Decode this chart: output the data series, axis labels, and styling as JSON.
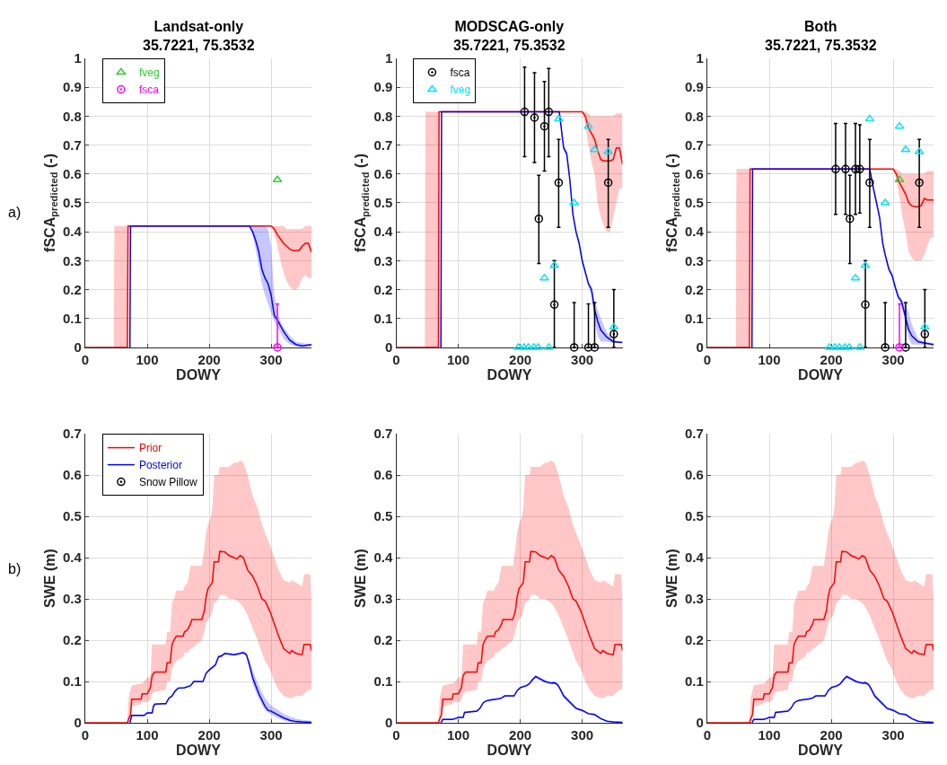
{
  "chart_data": [
    {
      "type": "line",
      "title": "Landsat-only",
      "subtitle": "35.7221, 75.3532",
      "xlabel": "DOWY",
      "ylabel": "fSCA$_{predicted}$ (-)",
      "annotations": [
        "a)"
      ],
      "xlim": [
        0,
        365
      ],
      "xticks": [
        0,
        100,
        200,
        300
      ],
      "ylim": [
        0,
        1
      ],
      "yticks": [
        0,
        0.1,
        0.2,
        0.3,
        0.4,
        0.5,
        0.6,
        0.7,
        0.8,
        0.9,
        1
      ],
      "grid": true,
      "legend": "top left",
      "series": [
        {
          "color": "#ff0000",
          "x": [
            0,
            46,
            47,
            68,
            69,
            300,
            305,
            310,
            315,
            320,
            325,
            330,
            335,
            340,
            345,
            350,
            355,
            360,
            365
          ],
          "values": [
            0,
            0,
            0,
            0,
            0.42,
            0.42,
            0.41,
            0.39,
            0.375,
            0.36,
            0.35,
            0.34,
            0.335,
            0.335,
            0.335,
            0.35,
            0.36,
            0.36,
            0.33
          ],
          "upper": [
            0,
            0,
            0.42,
            0.42,
            0.42,
            0.42,
            0.42,
            0.42,
            0.42,
            0.42,
            0.41,
            0.41,
            0.41,
            0.41,
            0.41,
            0.41,
            0.42,
            0.42,
            0.42
          ],
          "lower": [
            0,
            0,
            0,
            0,
            0.42,
            0.42,
            0.39,
            0.35,
            0.3,
            0.26,
            0.23,
            0.21,
            0.2,
            0.2,
            0.21,
            0.24,
            0.25,
            0.24,
            0.24
          ]
        },
        {
          "color": "#0000ff",
          "x": [
            72,
            73,
            265,
            270,
            275,
            280,
            285,
            290,
            295,
            300,
            305,
            310,
            315,
            320,
            330,
            340,
            350,
            365
          ],
          "values": [
            0,
            0.42,
            0.42,
            0.4,
            0.37,
            0.33,
            0.27,
            0.24,
            0.22,
            0.18,
            0.11,
            0.095,
            0.075,
            0.055,
            0.025,
            0.01,
            0.005,
            0.01
          ],
          "upper": [
            null,
            null,
            0.42,
            0.42,
            0.42,
            0.42,
            0.42,
            0.42,
            0.41,
            0.35,
            0.18,
            0.12,
            0.09,
            0.07,
            0.04,
            0.02,
            0.015,
            0.01
          ],
          "lower": [
            null,
            null,
            0.42,
            0.39,
            0.34,
            0.28,
            0.22,
            0.18,
            0.15,
            0.12,
            0.09,
            0.07,
            0.05,
            0.03,
            0.01,
            0.003,
            0,
            0.003
          ]
        },
        {
          "type": "scatter",
          "name": "fsca",
          "color": "#ff00ff",
          "marker": "circle",
          "x": [
            310
          ],
          "values": [
            0
          ],
          "errors": [
            [
              0,
              0.15
            ]
          ]
        },
        {
          "type": "scatter",
          "name": "fveg",
          "color": "#33cc33",
          "marker": "triangle",
          "x": [
            310
          ],
          "values": [
            0.58
          ]
        }
      ]
    },
    {
      "type": "line",
      "title": "MODSCAG-only",
      "subtitle": "35.7221, 75.3532",
      "xlabel": "DOWY",
      "ylabel": "fSCA$_{predicted}$ (-)",
      "xlim": [
        0,
        365
      ],
      "xticks": [
        0,
        100,
        200,
        300
      ],
      "ylim": [
        0,
        1
      ],
      "yticks": [
        0,
        0.1,
        0.2,
        0.3,
        0.4,
        0.5,
        0.6,
        0.7,
        0.8,
        0.9,
        1
      ],
      "grid": true,
      "legend": "top left",
      "series": [
        {
          "color": "#ff0000",
          "x": [
            0,
            46,
            47,
            68,
            69,
            300,
            305,
            310,
            315,
            320,
            325,
            330,
            335,
            340,
            345,
            350,
            355,
            360,
            365
          ],
          "values": [
            0,
            0,
            0,
            0,
            0.815,
            0.815,
            0.8,
            0.76,
            0.74,
            0.72,
            0.68,
            0.65,
            0.645,
            0.645,
            0.645,
            0.65,
            0.69,
            0.69,
            0.635
          ],
          "upper": [
            0,
            0,
            0.815,
            0.815,
            0.815,
            0.815,
            0.815,
            0.81,
            0.8,
            0.8,
            0.8,
            0.8,
            0.8,
            0.8,
            0.8,
            0.8,
            0.81,
            0.81,
            0.81
          ],
          "lower": [
            0,
            0,
            0,
            0,
            0.815,
            0.815,
            0.77,
            0.7,
            0.64,
            0.6,
            0.5,
            0.45,
            0.42,
            0.4,
            0.4,
            0.45,
            0.5,
            0.55,
            0.55
          ]
        },
        {
          "color": "#0000ff",
          "x": [
            72,
            73,
            263,
            265,
            270,
            275,
            280,
            285,
            290,
            295,
            300,
            305,
            310,
            315,
            320,
            325,
            330,
            340,
            350,
            365
          ],
          "values": [
            0,
            0.815,
            0.815,
            0.78,
            0.69,
            0.67,
            0.58,
            0.46,
            0.4,
            0.36,
            0.3,
            0.26,
            0.22,
            0.2,
            0.13,
            0.09,
            0.06,
            0.035,
            0.02,
            0.017
          ],
          "upper": [
            null,
            null,
            0.815,
            0.79,
            0.7,
            0.68,
            0.59,
            0.47,
            0.41,
            0.37,
            0.31,
            0.27,
            0.23,
            0.21,
            0.16,
            0.13,
            0.1,
            0.05,
            0.025,
            0.02
          ],
          "lower": [
            null,
            null,
            0.815,
            0.77,
            0.68,
            0.66,
            0.57,
            0.45,
            0.39,
            0.35,
            0.29,
            0.25,
            0.21,
            0.18,
            0.09,
            0.04,
            0.02,
            0.02,
            0.015,
            0.015
          ]
        },
        {
          "type": "scatter",
          "name": "fsca",
          "color": "#000000",
          "marker": "circle",
          "x": [
            207,
            223,
            230,
            239,
            246,
            255,
            262,
            287,
            310,
            320,
            342,
            351
          ],
          "values": [
            0.815,
            0.795,
            0.445,
            0.765,
            0.815,
            0.148,
            0.57,
            0,
            0,
            0,
            0.57,
            0.046
          ],
          "errors": [
            [
              0.66,
              0.97
            ],
            [
              0.64,
              0.95
            ],
            [
              0.29,
              0.595
            ],
            [
              0.61,
              0.92
            ],
            [
              0.66,
              0.965
            ],
            [
              0,
              0.3
            ],
            [
              0.415,
              0.72
            ],
            [
              0,
              0.155
            ],
            [
              0,
              0.15
            ],
            [
              0,
              0.155
            ],
            [
              0.415,
              0.72
            ],
            [
              0,
              0.2
            ]
          ]
        },
        {
          "type": "scatter",
          "name": "fveg",
          "color": "#00e5ff",
          "marker": "triangle",
          "x": [
            197,
            206,
            213,
            222,
            229,
            246,
            262,
            239,
            255,
            287,
            310,
            320,
            342,
            351
          ],
          "values": [
            0,
            0,
            0,
            0,
            0,
            0,
            0.79,
            0.24,
            0.283,
            0.5,
            0.765,
            0.684,
            0.677,
            0.07
          ]
        }
      ]
    },
    {
      "type": "line",
      "title": "Both",
      "subtitle": "35.7221, 75.3532",
      "xlabel": "DOWY",
      "ylabel": "fSCA$_{predicted}$ (-)",
      "xlim": [
        0,
        365
      ],
      "xticks": [
        0,
        100,
        200,
        300
      ],
      "ylim": [
        0,
        1
      ],
      "yticks": [
        0,
        0.1,
        0.2,
        0.3,
        0.4,
        0.5,
        0.6,
        0.7,
        0.8,
        0.9,
        1
      ],
      "grid": true,
      "series": [
        {
          "color": "#ff0000",
          "x": [
            0,
            46,
            47,
            68,
            69,
            300,
            305,
            310,
            315,
            320,
            325,
            330,
            335,
            340,
            345,
            350,
            355,
            360,
            365
          ],
          "values": [
            0,
            0,
            0,
            0,
            0.617,
            0.617,
            0.6,
            0.57,
            0.55,
            0.53,
            0.5,
            0.49,
            0.487,
            0.487,
            0.49,
            0.515,
            0.51,
            0.51,
            0.51
          ],
          "upper": [
            0,
            0,
            0.617,
            0.617,
            0.617,
            0.617,
            0.617,
            0.61,
            0.6,
            0.6,
            0.6,
            0.6,
            0.6,
            0.6,
            0.6,
            0.6,
            0.61,
            0.61,
            0.61
          ],
          "lower": [
            0,
            0,
            0,
            0,
            0.617,
            0.617,
            0.58,
            0.52,
            0.45,
            0.4,
            0.33,
            0.31,
            0.3,
            0.3,
            0.3,
            0.32,
            0.35,
            0.38,
            0.38
          ]
        },
        {
          "color": "#0000ff",
          "x": [
            72,
            73,
            262,
            268,
            272,
            278,
            283,
            287,
            293,
            298,
            303,
            308,
            313,
            318,
            325,
            330,
            340,
            350,
            365
          ],
          "values": [
            0,
            0.617,
            0.617,
            0.55,
            0.51,
            0.45,
            0.36,
            0.32,
            0.27,
            0.25,
            0.21,
            0.175,
            0.16,
            0.12,
            0.06,
            0.04,
            0.02,
            0.015,
            0.01
          ],
          "upper": [
            null,
            null,
            0.617,
            0.56,
            0.52,
            0.46,
            0.37,
            0.33,
            0.28,
            0.26,
            0.22,
            0.185,
            0.17,
            0.15,
            0.12,
            0.08,
            0.03,
            0.02,
            0.015
          ],
          "lower": [
            null,
            null,
            0.617,
            0.54,
            0.5,
            0.44,
            0.35,
            0.31,
            0.26,
            0.24,
            0.2,
            0.165,
            0.15,
            0.1,
            0.03,
            0.01,
            0.01,
            0.01,
            0.005
          ]
        },
        {
          "type": "scatter",
          "color": "#000000",
          "marker": "circle",
          "x": [
            207,
            223,
            230,
            239,
            246,
            255,
            262,
            287,
            320,
            342,
            351
          ],
          "values": [
            0.617,
            0.617,
            0.445,
            0.617,
            0.617,
            0.148,
            0.57,
            0,
            0,
            0.57,
            0.046
          ],
          "errors": [
            [
              0.46,
              0.775
            ],
            [
              0.46,
              0.775
            ],
            [
              0.29,
              0.595
            ],
            [
              0.46,
              0.775
            ],
            [
              0.465,
              0.77
            ],
            [
              0,
              0.3
            ],
            [
              0.415,
              0.72
            ],
            [
              0,
              0.155
            ],
            [
              0,
              0.155
            ],
            [
              0.415,
              0.72
            ],
            [
              0,
              0.2
            ]
          ]
        },
        {
          "type": "scatter",
          "color": "#ff00ff",
          "marker": "circle",
          "x": [
            310
          ],
          "values": [
            0
          ],
          "errors": [
            [
              0,
              0.15
            ]
          ]
        },
        {
          "type": "scatter",
          "color": "#00e5ff",
          "marker": "triangle",
          "x": [
            197,
            206,
            213,
            222,
            229,
            246,
            262,
            239,
            255,
            287,
            310,
            320,
            342,
            351
          ],
          "values": [
            0,
            0,
            0,
            0,
            0,
            0,
            0.79,
            0.24,
            0.283,
            0.5,
            0.765,
            0.684,
            0.677,
            0.07
          ]
        },
        {
          "type": "scatter",
          "color": "#33cc33",
          "marker": "triangle",
          "x": [
            310
          ],
          "values": [
            0.58
          ]
        }
      ]
    },
    {
      "type": "line",
      "xlabel": "DOWY",
      "ylabel": "SWE (m)",
      "annotations": [
        "b)"
      ],
      "xlim": [
        0,
        365
      ],
      "xticks": [
        0,
        100,
        200,
        300
      ],
      "ylim": [
        0,
        0.7
      ],
      "yticks": [
        0,
        0.1,
        0.2,
        0.3,
        0.4,
        0.5,
        0.6,
        0.7
      ],
      "grid": true,
      "legend": "top left",
      "series": [
        {
          "name": "Prior",
          "color": "#ff0000",
          "x": [
            0,
            68,
            70,
            73,
            75,
            90,
            92,
            100,
            105,
            108,
            112,
            130,
            132,
            137,
            140,
            143,
            147,
            158,
            160,
            165,
            170,
            172,
            188,
            192,
            195,
            198,
            203,
            205,
            208,
            215,
            217,
            225,
            232,
            240,
            245,
            250,
            255,
            262,
            270,
            278,
            285,
            290,
            298,
            305,
            312,
            320,
            330,
            333,
            340,
            350,
            353,
            360,
            363,
            365
          ],
          "values": [
            0,
            0,
            0.01,
            0.02,
            0.057,
            0.057,
            0.07,
            0.07,
            0.085,
            0.115,
            0.123,
            0.123,
            0.145,
            0.145,
            0.19,
            0.2,
            0.21,
            0.21,
            0.22,
            0.225,
            0.24,
            0.25,
            0.25,
            0.27,
            0.305,
            0.325,
            0.335,
            0.34,
            0.39,
            0.39,
            0.415,
            0.414,
            0.405,
            0.4,
            0.397,
            0.405,
            0.4,
            0.37,
            0.355,
            0.33,
            0.3,
            0.295,
            0.27,
            0.24,
            0.21,
            0.18,
            0.168,
            0.175,
            0.168,
            0.165,
            0.19,
            0.19,
            0.19,
            0.175
          ],
          "upper": [
            0,
            0,
            0.06,
            0.08,
            0.09,
            0.095,
            0.095,
            0.11,
            0.11,
            0.19,
            0.19,
            0.19,
            0.22,
            0.22,
            0.29,
            0.3,
            0.32,
            0.32,
            0.33,
            0.34,
            0.38,
            0.38,
            0.38,
            0.42,
            0.46,
            0.48,
            0.5,
            0.52,
            0.6,
            0.6,
            0.62,
            0.62,
            0.62,
            0.63,
            0.63,
            0.635,
            0.63,
            0.6,
            0.55,
            0.52,
            0.48,
            0.46,
            0.43,
            0.4,
            0.37,
            0.345,
            0.34,
            0.345,
            0.34,
            0.33,
            0.36,
            0.36,
            0.36,
            0.3
          ],
          "lower": [
            0,
            0,
            0,
            0.01,
            0.04,
            0.045,
            0.05,
            0.05,
            0.055,
            0.07,
            0.075,
            0.08,
            0.1,
            0.1,
            0.13,
            0.14,
            0.15,
            0.16,
            0.17,
            0.17,
            0.18,
            0.18,
            0.2,
            0.22,
            0.24,
            0.25,
            0.26,
            0.27,
            0.29,
            0.3,
            0.31,
            0.31,
            0.3,
            0.3,
            0.295,
            0.29,
            0.28,
            0.26,
            0.23,
            0.2,
            0.17,
            0.15,
            0.13,
            0.1,
            0.08,
            0.065,
            0.06,
            0.06,
            0.065,
            0.065,
            0.07,
            0.08,
            0.08,
            0.08
          ]
        },
        {
          "name": "Posterior",
          "color": "#0000ff",
          "x": [
            72,
            75,
            95,
            100,
            108,
            110,
            112,
            125,
            130,
            135,
            140,
            145,
            150,
            160,
            170,
            175,
            190,
            195,
            200,
            210,
            215,
            220,
            225,
            240,
            250,
            255,
            260,
            265,
            270,
            280,
            290,
            295,
            300,
            310,
            320,
            330,
            340,
            350,
            365
          ],
          "values": [
            0,
            0.018,
            0.018,
            0.024,
            0.024,
            0.04,
            0.045,
            0.046,
            0.046,
            0.06,
            0.065,
            0.077,
            0.084,
            0.085,
            0.09,
            0.1,
            0.1,
            0.12,
            0.128,
            0.14,
            0.16,
            0.162,
            0.168,
            0.165,
            0.168,
            0.17,
            0.165,
            0.14,
            0.11,
            0.07,
            0.04,
            0.03,
            0.028,
            0.02,
            0.012,
            0.006,
            0.003,
            0.002,
            0.001
          ],
          "upper": [
            0,
            0.02,
            0.02,
            0.026,
            0.026,
            0.042,
            0.047,
            0.048,
            0.048,
            0.062,
            0.067,
            0.079,
            0.086,
            0.087,
            0.092,
            0.102,
            0.102,
            0.123,
            0.131,
            0.143,
            0.163,
            0.165,
            0.171,
            0.168,
            0.171,
            0.173,
            0.17,
            0.152,
            0.128,
            0.09,
            0.06,
            0.05,
            0.042,
            0.032,
            0.022,
            0.015,
            0.01,
            0.007,
            0.005
          ],
          "lower": [
            0,
            0.016,
            0.016,
            0.022,
            0.022,
            0.038,
            0.043,
            0.044,
            0.044,
            0.058,
            0.063,
            0.075,
            0.082,
            0.083,
            0.088,
            0.098,
            0.098,
            0.117,
            0.125,
            0.137,
            0.157,
            0.159,
            0.165,
            0.162,
            0.165,
            0.167,
            0.16,
            0.13,
            0.095,
            0.058,
            0.03,
            0.025,
            0.02,
            0.012,
            0.006,
            0.002,
            0,
            0,
            0
          ]
        },
        {
          "type": "scatter",
          "name": "Snow Pillow",
          "color": "#000000",
          "marker": "circle"
        }
      ]
    },
    {
      "type": "line",
      "xlabel": "DOWY",
      "ylabel": "SWE (m)",
      "xlim": [
        0,
        365
      ],
      "xticks": [
        0,
        100,
        200,
        300
      ],
      "ylim": [
        0,
        0.7
      ],
      "yticks": [
        0,
        0.1,
        0.2,
        0.3,
        0.4,
        0.5,
        0.6,
        0.7
      ],
      "grid": true,
      "series": [
        {
          "color": "#ff0000",
          "x": [
            0,
            68,
            70,
            73,
            75,
            90,
            92,
            100,
            105,
            108,
            112,
            130,
            132,
            137,
            140,
            143,
            147,
            158,
            160,
            165,
            170,
            172,
            188,
            192,
            195,
            198,
            203,
            205,
            208,
            215,
            217,
            225,
            232,
            240,
            245,
            250,
            255,
            262,
            270,
            278,
            285,
            290,
            298,
            305,
            312,
            320,
            330,
            333,
            340,
            350,
            353,
            360,
            363,
            365
          ],
          "values": [
            0,
            0,
            0.01,
            0.02,
            0.057,
            0.057,
            0.07,
            0.07,
            0.085,
            0.115,
            0.123,
            0.123,
            0.145,
            0.145,
            0.19,
            0.2,
            0.21,
            0.21,
            0.22,
            0.225,
            0.24,
            0.25,
            0.25,
            0.27,
            0.305,
            0.325,
            0.335,
            0.34,
            0.39,
            0.39,
            0.415,
            0.414,
            0.405,
            0.4,
            0.397,
            0.405,
            0.4,
            0.37,
            0.355,
            0.33,
            0.3,
            0.295,
            0.27,
            0.24,
            0.21,
            0.18,
            0.168,
            0.175,
            0.168,
            0.165,
            0.19,
            0.19,
            0.19,
            0.175
          ],
          "upper": [
            0,
            0,
            0.06,
            0.08,
            0.09,
            0.095,
            0.095,
            0.11,
            0.11,
            0.19,
            0.19,
            0.19,
            0.22,
            0.22,
            0.29,
            0.3,
            0.32,
            0.32,
            0.33,
            0.34,
            0.38,
            0.38,
            0.38,
            0.42,
            0.46,
            0.48,
            0.5,
            0.52,
            0.6,
            0.6,
            0.62,
            0.62,
            0.62,
            0.63,
            0.63,
            0.635,
            0.63,
            0.6,
            0.55,
            0.52,
            0.48,
            0.46,
            0.43,
            0.4,
            0.37,
            0.345,
            0.34,
            0.345,
            0.34,
            0.33,
            0.36,
            0.36,
            0.36,
            0.3
          ],
          "lower": [
            0,
            0,
            0,
            0.01,
            0.04,
            0.045,
            0.05,
            0.05,
            0.055,
            0.07,
            0.075,
            0.08,
            0.1,
            0.1,
            0.13,
            0.14,
            0.15,
            0.16,
            0.17,
            0.17,
            0.18,
            0.18,
            0.2,
            0.22,
            0.24,
            0.25,
            0.26,
            0.27,
            0.29,
            0.3,
            0.31,
            0.31,
            0.3,
            0.3,
            0.295,
            0.29,
            0.28,
            0.26,
            0.23,
            0.2,
            0.17,
            0.15,
            0.13,
            0.1,
            0.08,
            0.065,
            0.06,
            0.06,
            0.065,
            0.065,
            0.07,
            0.08,
            0.08,
            0.08
          ]
        },
        {
          "color": "#0000ff",
          "x": [
            72,
            75,
            90,
            95,
            100,
            108,
            110,
            130,
            135,
            140,
            145,
            150,
            165,
            170,
            175,
            190,
            195,
            200,
            210,
            215,
            220,
            225,
            230,
            240,
            250,
            255,
            260,
            265,
            270,
            280,
            290,
            300,
            310,
            320,
            330,
            340,
            350,
            365
          ],
          "values": [
            0,
            0.008,
            0.008,
            0.01,
            0.013,
            0.013,
            0.025,
            0.028,
            0.035,
            0.048,
            0.053,
            0.055,
            0.058,
            0.06,
            0.065,
            0.065,
            0.078,
            0.085,
            0.09,
            0.095,
            0.105,
            0.112,
            0.108,
            0.1,
            0.096,
            0.097,
            0.093,
            0.08,
            0.065,
            0.05,
            0.035,
            0.03,
            0.022,
            0.02,
            0.01,
            0.004,
            0.002,
            0.001
          ],
          "upper": [
            0,
            0.01,
            0.01,
            0.012,
            0.015,
            0.015,
            0.027,
            0.03,
            0.037,
            0.05,
            0.055,
            0.057,
            0.06,
            0.062,
            0.067,
            0.067,
            0.08,
            0.088,
            0.093,
            0.098,
            0.109,
            0.115,
            0.112,
            0.103,
            0.099,
            0.1,
            0.097,
            0.085,
            0.07,
            0.055,
            0.038,
            0.033,
            0.025,
            0.022,
            0.012,
            0.005,
            0.003,
            0.002
          ],
          "lower": [
            0,
            0.006,
            0.006,
            0.008,
            0.011,
            0.011,
            0.023,
            0.026,
            0.033,
            0.046,
            0.051,
            0.053,
            0.056,
            0.058,
            0.063,
            0.063,
            0.076,
            0.082,
            0.087,
            0.092,
            0.101,
            0.109,
            0.104,
            0.097,
            0.093,
            0.094,
            0.089,
            0.075,
            0.06,
            0.045,
            0.032,
            0.027,
            0.019,
            0.018,
            0.008,
            0.003,
            0.001,
            0
          ]
        }
      ]
    },
    {
      "type": "line",
      "xlabel": "DOWY",
      "ylabel": "SWE (m)",
      "xlim": [
        0,
        365
      ],
      "xticks": [
        0,
        100,
        200,
        300
      ],
      "ylim": [
        0,
        0.7
      ],
      "yticks": [
        0,
        0.1,
        0.2,
        0.3,
        0.4,
        0.5,
        0.6,
        0.7
      ],
      "grid": true,
      "series": [
        {
          "color": "#ff0000",
          "x": [
            0,
            68,
            70,
            73,
            75,
            90,
            92,
            100,
            105,
            108,
            112,
            130,
            132,
            137,
            140,
            143,
            147,
            158,
            160,
            165,
            170,
            172,
            188,
            192,
            195,
            198,
            203,
            205,
            208,
            215,
            217,
            225,
            232,
            240,
            245,
            250,
            255,
            262,
            270,
            278,
            285,
            290,
            298,
            305,
            312,
            320,
            330,
            333,
            340,
            350,
            353,
            360,
            363,
            365
          ],
          "values": [
            0,
            0,
            0.01,
            0.02,
            0.057,
            0.057,
            0.07,
            0.07,
            0.085,
            0.115,
            0.123,
            0.123,
            0.145,
            0.145,
            0.19,
            0.2,
            0.21,
            0.21,
            0.22,
            0.225,
            0.24,
            0.25,
            0.25,
            0.27,
            0.305,
            0.325,
            0.335,
            0.34,
            0.39,
            0.39,
            0.415,
            0.414,
            0.405,
            0.4,
            0.397,
            0.405,
            0.4,
            0.37,
            0.355,
            0.33,
            0.3,
            0.295,
            0.27,
            0.24,
            0.21,
            0.18,
            0.168,
            0.175,
            0.168,
            0.165,
            0.19,
            0.19,
            0.19,
            0.175
          ],
          "upper": [
            0,
            0,
            0.06,
            0.08,
            0.09,
            0.095,
            0.095,
            0.11,
            0.11,
            0.19,
            0.19,
            0.19,
            0.22,
            0.22,
            0.29,
            0.3,
            0.32,
            0.32,
            0.33,
            0.34,
            0.38,
            0.38,
            0.38,
            0.42,
            0.46,
            0.48,
            0.5,
            0.52,
            0.6,
            0.6,
            0.62,
            0.62,
            0.62,
            0.63,
            0.63,
            0.635,
            0.63,
            0.6,
            0.55,
            0.52,
            0.48,
            0.46,
            0.43,
            0.4,
            0.37,
            0.345,
            0.34,
            0.345,
            0.34,
            0.33,
            0.36,
            0.36,
            0.36,
            0.3
          ],
          "lower": [
            0,
            0,
            0,
            0.01,
            0.04,
            0.045,
            0.05,
            0.05,
            0.055,
            0.07,
            0.075,
            0.08,
            0.1,
            0.1,
            0.13,
            0.14,
            0.15,
            0.16,
            0.17,
            0.17,
            0.18,
            0.18,
            0.2,
            0.22,
            0.24,
            0.25,
            0.26,
            0.27,
            0.29,
            0.3,
            0.31,
            0.31,
            0.3,
            0.3,
            0.295,
            0.29,
            0.28,
            0.26,
            0.23,
            0.2,
            0.17,
            0.15,
            0.13,
            0.1,
            0.08,
            0.065,
            0.06,
            0.06,
            0.065,
            0.065,
            0.07,
            0.08,
            0.08,
            0.08
          ]
        },
        {
          "color": "#0000ff",
          "x": [
            72,
            75,
            90,
            95,
            100,
            108,
            110,
            130,
            135,
            140,
            145,
            150,
            165,
            170,
            175,
            190,
            195,
            200,
            210,
            215,
            220,
            225,
            230,
            240,
            250,
            255,
            260,
            265,
            270,
            280,
            290,
            300,
            310,
            320,
            330,
            340,
            350,
            365
          ],
          "values": [
            0,
            0.008,
            0.008,
            0.01,
            0.013,
            0.013,
            0.025,
            0.028,
            0.035,
            0.048,
            0.053,
            0.055,
            0.058,
            0.06,
            0.065,
            0.065,
            0.078,
            0.085,
            0.09,
            0.095,
            0.105,
            0.112,
            0.108,
            0.1,
            0.096,
            0.097,
            0.093,
            0.08,
            0.065,
            0.05,
            0.035,
            0.03,
            0.022,
            0.02,
            0.01,
            0.004,
            0.002,
            0.001
          ],
          "upper": [
            0,
            0.01,
            0.01,
            0.012,
            0.015,
            0.015,
            0.027,
            0.03,
            0.037,
            0.05,
            0.055,
            0.057,
            0.06,
            0.062,
            0.067,
            0.067,
            0.08,
            0.088,
            0.093,
            0.098,
            0.109,
            0.115,
            0.112,
            0.103,
            0.099,
            0.1,
            0.097,
            0.085,
            0.07,
            0.055,
            0.038,
            0.033,
            0.025,
            0.022,
            0.012,
            0.005,
            0.003,
            0.002
          ],
          "lower": [
            0,
            0.006,
            0.006,
            0.008,
            0.011,
            0.011,
            0.023,
            0.026,
            0.033,
            0.046,
            0.051,
            0.053,
            0.056,
            0.058,
            0.063,
            0.063,
            0.076,
            0.082,
            0.087,
            0.092,
            0.101,
            0.109,
            0.104,
            0.097,
            0.093,
            0.094,
            0.089,
            0.075,
            0.06,
            0.045,
            0.032,
            0.027,
            0.019,
            0.018,
            0.008,
            0.003,
            0.001,
            0
          ]
        }
      ]
    }
  ]
}
